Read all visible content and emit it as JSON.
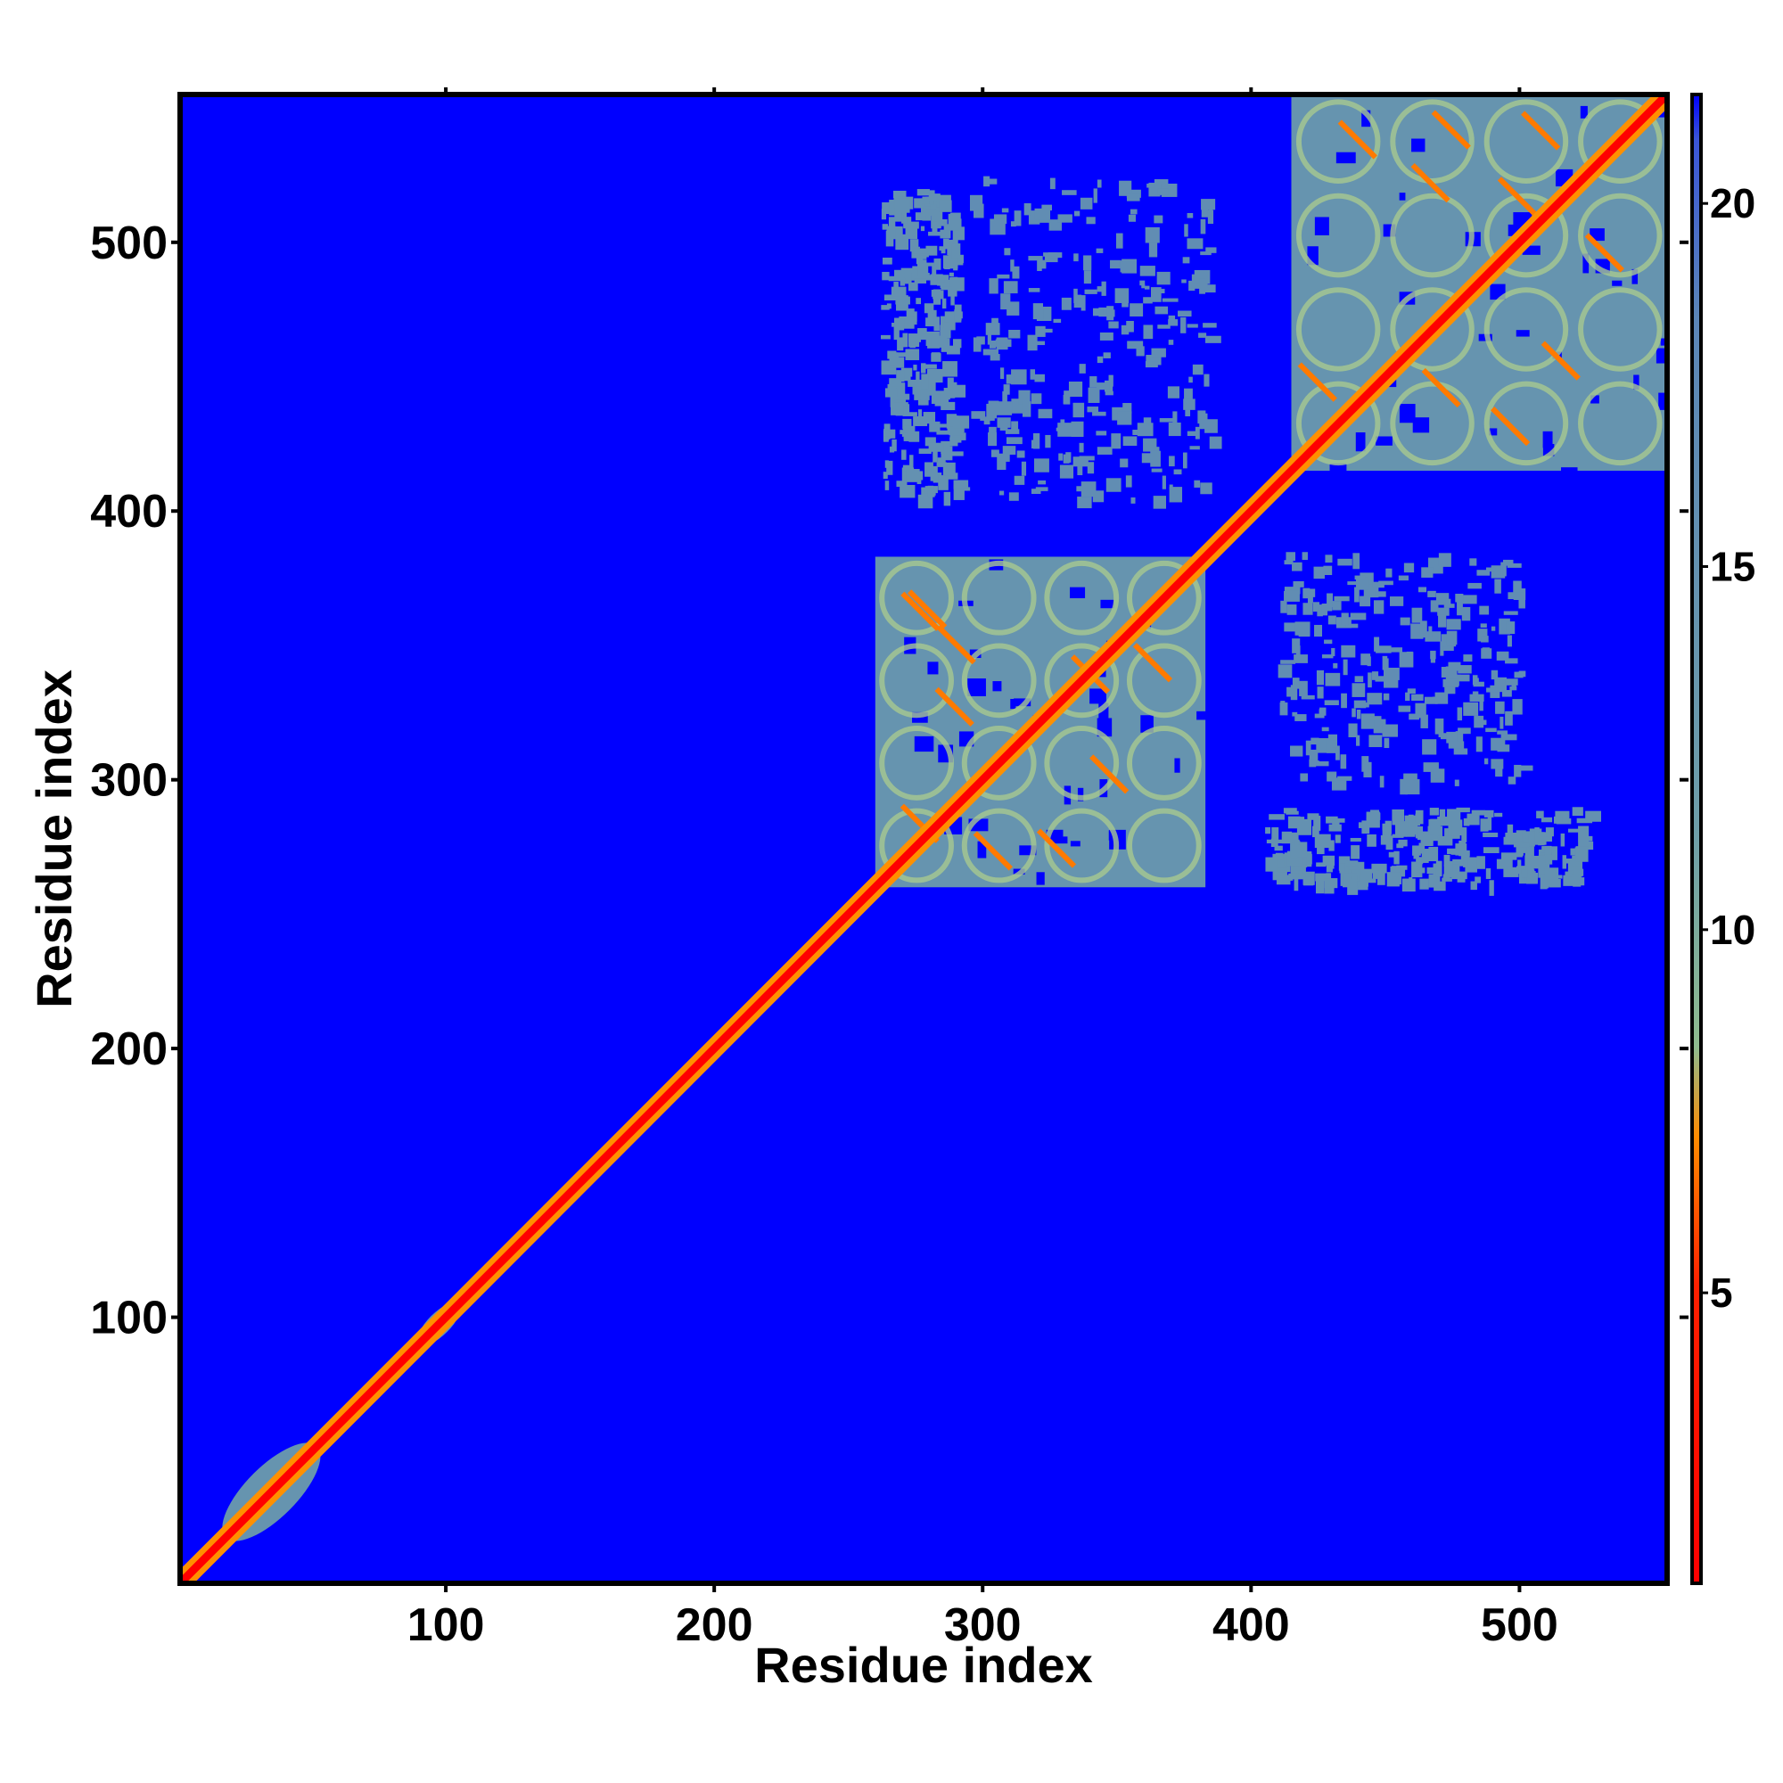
{
  "chart_data": {
    "type": "heatmap",
    "title": "",
    "xlabel": "Residue index",
    "ylabel": "Residue index",
    "xlim": [
      1,
      555
    ],
    "ylim": [
      1,
      555
    ],
    "x_ticks": [
      100,
      200,
      300,
      400,
      500
    ],
    "y_ticks": [
      100,
      200,
      300,
      400,
      500
    ],
    "colorbar": {
      "range": [
        1,
        21.5
      ],
      "ticks": [
        5,
        10,
        15,
        20
      ],
      "colors": [
        "#ff0000",
        "#ff8c00",
        "#8fbc8f",
        "#5b86b8",
        "#0000ff"
      ],
      "placement": "right"
    },
    "grid": false,
    "background_value": 21.5,
    "diagonal": {
      "start": 1,
      "end": 555
    },
    "regions": [
      {
        "x": [
          18,
          52
        ],
        "y": [
          18,
          52
        ],
        "value": 15,
        "kind": "blob"
      },
      {
        "x": [
          90,
          105
        ],
        "y": [
          90,
          105
        ],
        "value": 15,
        "kind": "blob"
      },
      {
        "x": [
          260,
          383
        ],
        "y": [
          260,
          383
        ],
        "value": 15,
        "kind": "domain"
      },
      {
        "x": [
          415,
          555
        ],
        "y": [
          415,
          555
        ],
        "value": 15,
        "kind": "domain"
      },
      {
        "x": [
          262,
          290
        ],
        "y": [
          405,
          520
        ],
        "value": 16,
        "kind": "sparse"
      },
      {
        "x": [
          295,
          385
        ],
        "y": [
          405,
          525
        ],
        "value": 17,
        "kind": "sparse"
      },
      {
        "x": [
          405,
          525
        ],
        "y": [
          262,
          290
        ],
        "value": 16,
        "kind": "sparse"
      },
      {
        "x": [
          410,
          500
        ],
        "y": [
          300,
          385
        ],
        "value": 17,
        "kind": "sparse"
      }
    ]
  }
}
